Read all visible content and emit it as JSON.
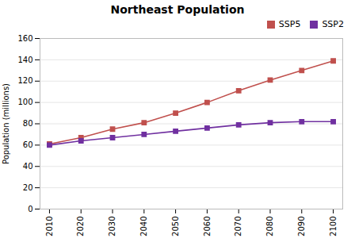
{
  "chart_data": {
    "type": "line",
    "title": "Northeast Population",
    "ylabel": "Population (millions)",
    "x": [
      2010,
      2020,
      2030,
      2040,
      2050,
      2060,
      2070,
      2080,
      2090,
      2100
    ],
    "series": [
      {
        "name": "SSP5",
        "color": "#C0504D",
        "values": [
          61,
          67,
          75,
          81,
          90,
          100,
          111,
          121,
          130,
          139
        ]
      },
      {
        "name": "SSP2",
        "color": "#7030A0",
        "values": [
          60,
          64,
          67,
          70,
          73,
          76,
          79,
          81,
          82,
          82
        ]
      }
    ],
    "marker": "square",
    "xlim": [
      2007,
      2103
    ],
    "xticks": [
      2010,
      2020,
      2030,
      2040,
      2050,
      2060,
      2070,
      2080,
      2090,
      2100
    ],
    "ylim": [
      0,
      160
    ],
    "yticks": [
      0,
      20,
      40,
      60,
      80,
      100,
      120,
      140,
      160
    ],
    "grid": "y",
    "legend": "upper right"
  }
}
